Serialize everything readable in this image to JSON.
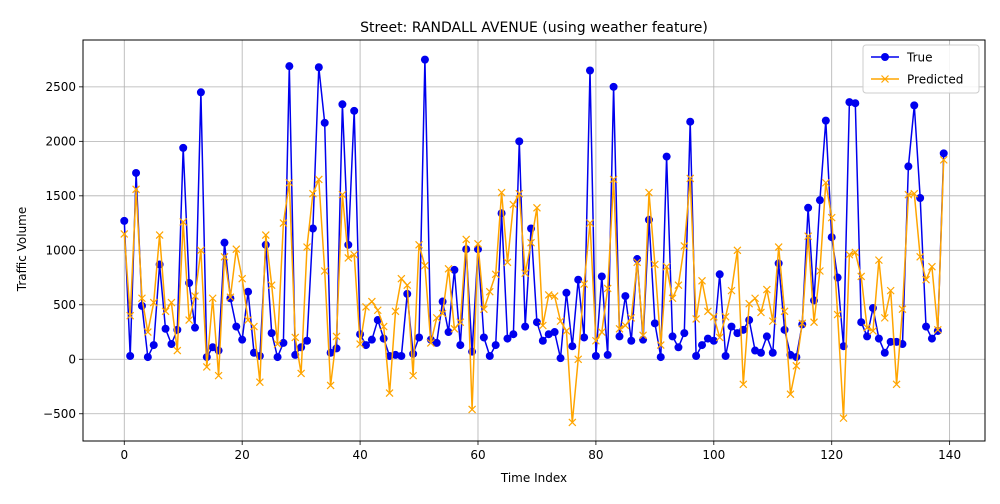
{
  "chart_data": {
    "type": "line",
    "title": "Street: RANDALL AVENUE (using weather feature)",
    "xlabel": "Time Index",
    "ylabel": "Traffic Volume",
    "xlim": [
      -7,
      146
    ],
    "ylim": [
      -750,
      2930
    ],
    "xticks": [
      0,
      20,
      40,
      60,
      80,
      100,
      120,
      140
    ],
    "yticks": [
      -500,
      0,
      500,
      1000,
      1500,
      2000,
      2500
    ],
    "grid": true,
    "legend_position": "upper right",
    "series": [
      {
        "name": "True",
        "color": "#0000ee",
        "marker": "circle",
        "values": [
          1270,
          30,
          1710,
          490,
          20,
          130,
          870,
          280,
          140,
          270,
          1940,
          700,
          290,
          2450,
          20,
          110,
          80,
          1070,
          560,
          300,
          180,
          620,
          60,
          30,
          1050,
          240,
          20,
          150,
          2690,
          40,
          110,
          170,
          1200,
          2680,
          2170,
          60,
          100,
          2340,
          1050,
          2280,
          230,
          130,
          180,
          360,
          190,
          30,
          40,
          30,
          600,
          50,
          200,
          2750,
          180,
          150,
          530,
          250,
          820,
          130,
          1010,
          70,
          1010,
          200,
          30,
          130,
          1340,
          190,
          230,
          2000,
          300,
          1200,
          340,
          170,
          230,
          250,
          10,
          610,
          120,
          730,
          200,
          2650,
          30,
          760,
          40,
          2500,
          210,
          580,
          170,
          920,
          180,
          1280,
          330,
          20,
          1860,
          210,
          110,
          240,
          2180,
          30,
          130,
          190,
          170,
          780,
          30,
          300,
          240,
          270,
          360,
          80,
          60,
          210,
          60,
          880,
          270,
          40,
          20,
          320,
          1390,
          540,
          1460,
          2190,
          1120,
          750,
          120,
          2360,
          2350,
          340,
          210,
          470,
          190,
          60,
          160,
          160,
          140,
          1770,
          2330,
          1480,
          300,
          190,
          260,
          1890
        ]
      },
      {
        "name": "Predicted",
        "color": "#ffa500",
        "marker": "x",
        "values": [
          1150,
          400,
          1560,
          560,
          250,
          520,
          1140,
          440,
          520,
          80,
          1260,
          360,
          580,
          1000,
          -70,
          560,
          -150,
          940,
          570,
          1010,
          740,
          360,
          300,
          -210,
          1140,
          680,
          140,
          1250,
          1620,
          200,
          -130,
          1030,
          1520,
          1650,
          810,
          -240,
          210,
          1510,
          930,
          960,
          140,
          480,
          530,
          450,
          300,
          -310,
          440,
          740,
          680,
          -150,
          1050,
          860,
          150,
          380,
          420,
          830,
          280,
          340,
          1100,
          -460,
          1060,
          460,
          620,
          780,
          1530,
          890,
          1420,
          1520,
          790,
          1070,
          1390,
          310,
          590,
          580,
          350,
          260,
          -580,
          0,
          690,
          1250,
          170,
          250,
          650,
          1650,
          280,
          310,
          380,
          890,
          220,
          1530,
          870,
          130,
          850,
          560,
          680,
          1040,
          1660,
          370,
          720,
          440,
          390,
          200,
          390,
          630,
          1000,
          -230,
          510,
          560,
          430,
          640,
          350,
          1030,
          440,
          -320,
          -60,
          330,
          1130,
          340,
          810,
          1620,
          1300,
          410,
          -540,
          960,
          980,
          760,
          290,
          260,
          910,
          380,
          630,
          -230,
          460,
          1510,
          1520,
          940,
          730,
          850,
          270,
          1830
        ]
      }
    ]
  }
}
